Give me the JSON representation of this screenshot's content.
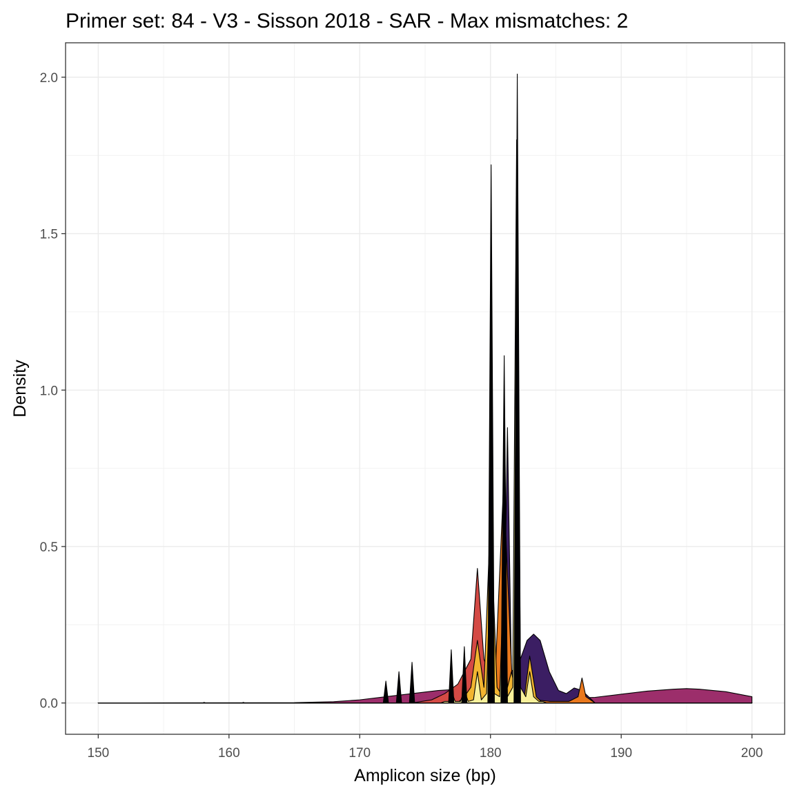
{
  "chart_data": {
    "type": "area",
    "title": "Primer set: 84 - V3 - Sisson 2018 - SAR - Max mismatches: 2",
    "xlabel": "Amplicon size (bp)",
    "ylabel": "Density",
    "xlim": [
      147.5,
      202.5
    ],
    "ylim": [
      -0.1,
      2.11
    ],
    "x_ticks": [
      150,
      160,
      170,
      180,
      190,
      200
    ],
    "x_tick_labels": [
      "150",
      "160",
      "170",
      "180",
      "190",
      "200"
    ],
    "y_ticks": [
      0.0,
      0.5,
      1.0,
      1.5,
      2.0
    ],
    "y_tick_labels": [
      "0.0",
      "0.5",
      "1.0",
      "1.5",
      "2.0"
    ],
    "grid": true,
    "legend": "none",
    "series": [
      {
        "color": "#9c2e6b",
        "points": [
          [
            150,
            0.0
          ],
          [
            165,
            0.001
          ],
          [
            168,
            0.004
          ],
          [
            170,
            0.01
          ],
          [
            172,
            0.02
          ],
          [
            174,
            0.03
          ],
          [
            176,
            0.04
          ],
          [
            178,
            0.045
          ],
          [
            180,
            0.04
          ],
          [
            182,
            0.03
          ],
          [
            184,
            0.02
          ],
          [
            186,
            0.015
          ],
          [
            188,
            0.018
          ],
          [
            190,
            0.028
          ],
          [
            192,
            0.038
          ],
          [
            194,
            0.044
          ],
          [
            195,
            0.046
          ],
          [
            196,
            0.044
          ],
          [
            198,
            0.036
          ],
          [
            200,
            0.02
          ]
        ]
      },
      {
        "color": "#3b1e63",
        "points": [
          [
            150,
            0.0
          ],
          [
            176,
            0.0
          ],
          [
            178,
            0.01
          ],
          [
            179.5,
            0.04
          ],
          [
            180.5,
            0.06
          ],
          [
            181,
            0.09
          ],
          [
            181.3,
            0.88
          ],
          [
            181.6,
            0.1
          ],
          [
            182.2,
            0.13
          ],
          [
            182.8,
            0.2
          ],
          [
            183.3,
            0.22
          ],
          [
            183.8,
            0.2
          ],
          [
            184.5,
            0.1
          ],
          [
            185.2,
            0.04
          ],
          [
            185.8,
            0.03
          ],
          [
            186.4,
            0.048
          ],
          [
            187,
            0.04
          ],
          [
            188,
            0.0
          ],
          [
            200,
            0.0
          ]
        ]
      },
      {
        "color": "#d44a45",
        "points": [
          [
            150,
            0.0
          ],
          [
            174,
            0.0
          ],
          [
            175.5,
            0.01
          ],
          [
            176.5,
            0.03
          ],
          [
            177.5,
            0.06
          ],
          [
            178.5,
            0.14
          ],
          [
            179,
            0.43
          ],
          [
            179.5,
            0.14
          ],
          [
            180,
            0.08
          ],
          [
            180.5,
            0.06
          ],
          [
            181,
            0.04
          ],
          [
            181.5,
            0.03
          ],
          [
            182,
            0.02
          ],
          [
            183,
            0.01
          ],
          [
            184,
            0.0
          ],
          [
            200,
            0.0
          ]
        ]
      },
      {
        "color": "#e9781d",
        "points": [
          [
            150,
            0.0
          ],
          [
            178,
            0.0
          ],
          [
            179.5,
            0.01
          ],
          [
            180.3,
            0.03
          ],
          [
            181,
            0.7
          ],
          [
            181.7,
            0.03
          ],
          [
            182.5,
            0.02
          ],
          [
            183.5,
            0.01
          ],
          [
            184.5,
            0.005
          ],
          [
            186,
            0.005
          ],
          [
            186.7,
            0.02
          ],
          [
            187,
            0.08
          ],
          [
            187.3,
            0.02
          ],
          [
            188,
            0.0
          ],
          [
            200,
            0.0
          ]
        ]
      },
      {
        "color": "#f2b530",
        "points": [
          [
            150,
            0.0
          ],
          [
            177,
            0.0
          ],
          [
            177.6,
            0.005
          ],
          [
            178,
            0.02
          ],
          [
            178.5,
            0.05
          ],
          [
            179,
            0.2
          ],
          [
            179.5,
            0.05
          ],
          [
            180,
            0.6
          ],
          [
            180.5,
            0.05
          ],
          [
            180.8,
            0.03
          ],
          [
            181,
            0.5
          ],
          [
            181.3,
            0.05
          ],
          [
            181.6,
            0.1
          ],
          [
            182,
            0.02
          ],
          [
            182.6,
            0.02
          ],
          [
            183,
            0.15
          ],
          [
            183.5,
            0.02
          ],
          [
            184,
            0.0
          ],
          [
            200,
            0.0
          ]
        ]
      },
      {
        "color": "#f9f19b",
        "points": [
          [
            150,
            0.0
          ],
          [
            176.2,
            0.0
          ],
          [
            176.5,
            0.005
          ],
          [
            176.8,
            0.005
          ],
          [
            177,
            0.04
          ],
          [
            177.3,
            0.005
          ],
          [
            177.7,
            0.005
          ],
          [
            178,
            0.04
          ],
          [
            178.3,
            0.005
          ],
          [
            178.7,
            0.01
          ],
          [
            179,
            0.1
          ],
          [
            179.3,
            0.01
          ],
          [
            179.7,
            0.03
          ],
          [
            180,
            0.45
          ],
          [
            180.3,
            0.03
          ],
          [
            180.7,
            0.02
          ],
          [
            181,
            0.4
          ],
          [
            181.3,
            0.02
          ],
          [
            181.7,
            0.05
          ],
          [
            182,
            1.8
          ],
          [
            182.3,
            0.05
          ],
          [
            182.7,
            0.02
          ],
          [
            183,
            0.1
          ],
          [
            183.3,
            0.02
          ],
          [
            183.7,
            0.005
          ],
          [
            184,
            0.005
          ],
          [
            184.3,
            0.0
          ],
          [
            200,
            0.0
          ]
        ]
      },
      {
        "color": "#000004",
        "points": [
          [
            150,
            0.0
          ],
          [
            158,
            0.0
          ],
          [
            158.1,
            0.002
          ],
          [
            158.2,
            0.0
          ],
          [
            161,
            0.0
          ],
          [
            161.1,
            0.002
          ],
          [
            161.2,
            0.0
          ],
          [
            171.8,
            0.0
          ],
          [
            172,
            0.07
          ],
          [
            172.2,
            0.0
          ],
          [
            172.8,
            0.0
          ],
          [
            173,
            0.1
          ],
          [
            173.2,
            0.0
          ],
          [
            173.8,
            0.0
          ],
          [
            174,
            0.13
          ],
          [
            174.2,
            0.0
          ],
          [
            176.8,
            0.0
          ],
          [
            177,
            0.17
          ],
          [
            177.2,
            0.0
          ],
          [
            177.8,
            0.0
          ],
          [
            178,
            0.18
          ],
          [
            178.2,
            0.0
          ],
          [
            179.8,
            0.0
          ],
          [
            180.05,
            1.72
          ],
          [
            180.3,
            0.0
          ],
          [
            180.8,
            0.0
          ],
          [
            181.05,
            1.11
          ],
          [
            181.3,
            0.0
          ],
          [
            181.8,
            0.0
          ],
          [
            182.05,
            2.01
          ],
          [
            182.3,
            0.0
          ],
          [
            200,
            0.0
          ]
        ]
      }
    ]
  }
}
